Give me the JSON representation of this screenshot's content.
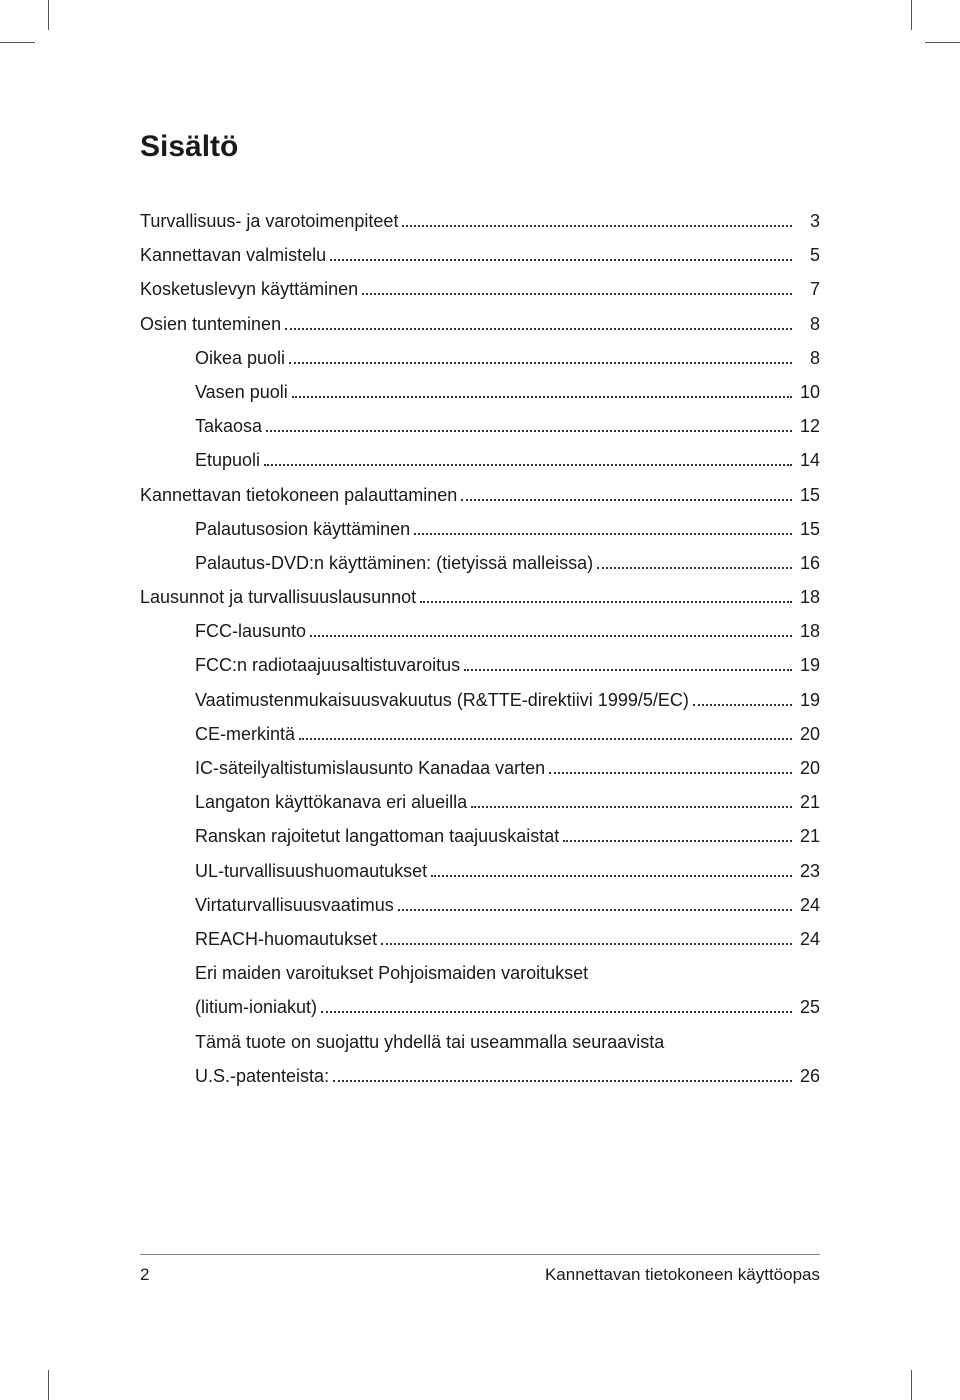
{
  "title": "Sisältö",
  "toc": [
    {
      "level": 1,
      "label": "Turvallisuus- ja varotoimenpiteet",
      "page": "3"
    },
    {
      "level": 1,
      "label": "Kannettavan valmistelu",
      "page": "5"
    },
    {
      "level": 1,
      "label": "Kosketuslevyn käyttäminen",
      "page": "7"
    },
    {
      "level": 1,
      "label": "Osien tunteminen",
      "page": "8"
    },
    {
      "level": 2,
      "label": "Oikea puoli",
      "page": "8"
    },
    {
      "level": 2,
      "label": "Vasen puoli",
      "page": "10"
    },
    {
      "level": 2,
      "label": "Takaosa ",
      "page": "12"
    },
    {
      "level": 2,
      "label": "Etupuoli ",
      "page": "14"
    },
    {
      "level": 1,
      "label": "Kannettavan tietokoneen palauttaminen",
      "page": "15"
    },
    {
      "level": 2,
      "label": "Palautusosion käyttäminen",
      "page": "15"
    },
    {
      "level": 2,
      "label": "Palautus-DVD:n käyttäminen:  (tietyissä malleissa)",
      "page": "16"
    },
    {
      "level": 1,
      "label": "Lausunnot ja turvallisuuslausunnot",
      "page": "18"
    },
    {
      "level": 2,
      "label": "FCC-lausunto",
      "page": "18"
    },
    {
      "level": 2,
      "label": "FCC:n radiotaajuusaltistuvaroitus",
      "page": "19"
    },
    {
      "level": 2,
      "label": "Vaatimustenmukaisuusvakuutus (R&TTE-direktiivi 1999/5/EC)",
      "page": "19"
    },
    {
      "level": 2,
      "label": "CE-merkintä",
      "page": "20"
    },
    {
      "level": 2,
      "label": "IC-säteilyaltistumislausunto Kanadaa varten",
      "page": "20"
    },
    {
      "level": 2,
      "label": "Langaton käyttökanava eri alueilla",
      "page": "21"
    },
    {
      "level": 2,
      "label": "Ranskan rajoitetut langattoman taajuuskaistat",
      "page": "21"
    },
    {
      "level": 2,
      "label": "UL-turvallisuushuomautukset",
      "page": "23"
    },
    {
      "level": 2,
      "label": "Virtaturvallisuusvaatimus",
      "page": "24"
    },
    {
      "level": 2,
      "label": "REACH-huomautukset",
      "page": "24"
    },
    {
      "level": 2,
      "wrap": true,
      "label_line1": "Eri maiden varoitukset Pohjoismaiden varoitukset",
      "label_line2": "(litium-ioniakut)",
      "page": "25"
    },
    {
      "level": 2,
      "wrap": true,
      "label_line1": "Tämä tuote on suojattu yhdellä tai useammalla seuraavista",
      "label_line2": "U.S.-patenteista:",
      "page": "26"
    }
  ],
  "footer": {
    "page_num": "2",
    "doc_title": "Kannettavan tietokoneen käyttöopas"
  },
  "colors": {
    "text": "#1a1a1a",
    "leader": "#333333",
    "footer_rule": "#888888",
    "background": "#ffffff"
  },
  "typography": {
    "title_fontsize_pt": 22,
    "body_fontsize_pt": 13,
    "title_weight": 700
  }
}
